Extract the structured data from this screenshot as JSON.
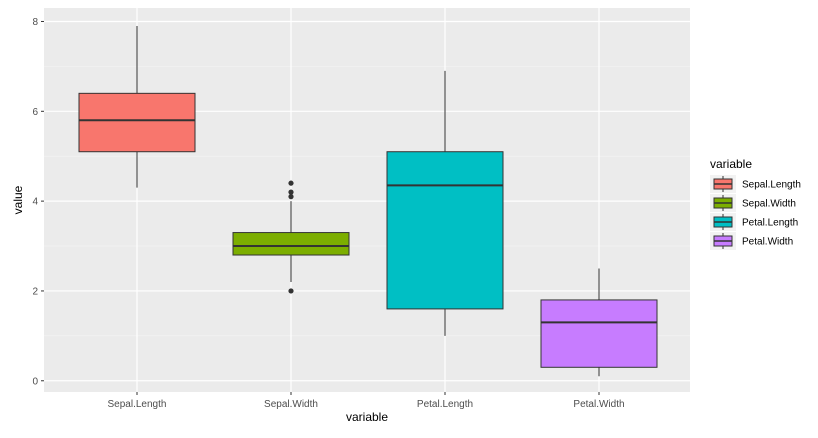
{
  "chart_data": {
    "type": "boxplot",
    "xlabel": "variable",
    "ylabel": "value",
    "ylim": [
      -0.25,
      8.3
    ],
    "yticks": [
      0,
      2,
      4,
      6,
      8
    ],
    "grid": true,
    "legend": {
      "title": "variable",
      "position": "right"
    },
    "categories": [
      "Sepal.Length",
      "Sepal.Width",
      "Petal.Length",
      "Petal.Width"
    ],
    "series": [
      {
        "name": "Sepal.Length",
        "color": "#F8766D",
        "whisker_low": 4.3,
        "q1": 5.1,
        "median": 5.8,
        "q3": 6.4,
        "whisker_high": 7.9,
        "outliers": []
      },
      {
        "name": "Sepal.Width",
        "color": "#7CAE00",
        "whisker_low": 2.2,
        "q1": 2.8,
        "median": 3.0,
        "q3": 3.3,
        "whisker_high": 4.0,
        "outliers": [
          2.0,
          4.1,
          4.2,
          4.4
        ]
      },
      {
        "name": "Petal.Length",
        "color": "#00BFC4",
        "whisker_low": 1.0,
        "q1": 1.6,
        "median": 4.35,
        "q3": 5.1,
        "whisker_high": 6.9,
        "outliers": []
      },
      {
        "name": "Petal.Width",
        "color": "#C77CFF",
        "whisker_low": 0.1,
        "q1": 0.3,
        "median": 1.3,
        "q3": 1.8,
        "whisker_high": 2.5,
        "outliers": []
      }
    ]
  }
}
